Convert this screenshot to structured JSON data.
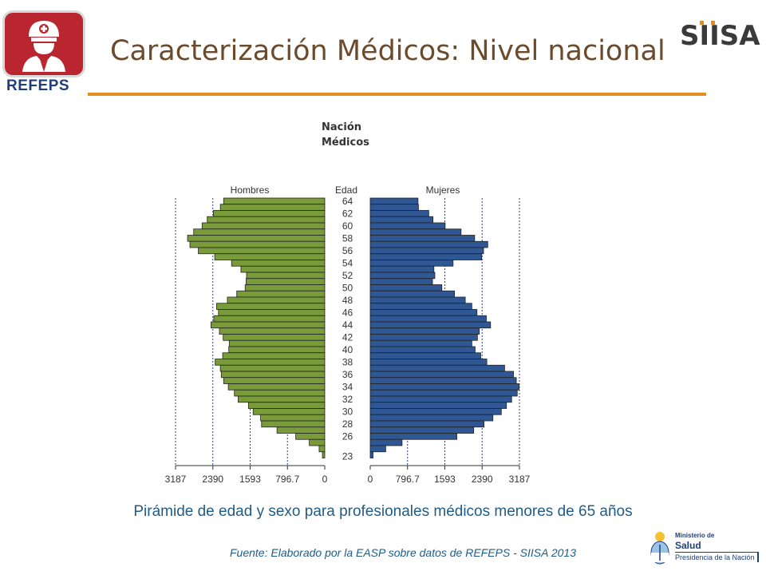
{
  "header": {
    "title": "Caracterización Médicos: Nivel nacional",
    "left_logo_text": "REFEPS",
    "right_logo_text": "SIISA",
    "accent_rule_color": "#e38f1f"
  },
  "icons": {
    "left_logo": "doctor-with-cross-cap-icon",
    "right_logo": "siisa-logo",
    "ministry_logo": "argentina-coat-of-arms-icon"
  },
  "chart_data": {
    "type": "bar",
    "orientation": "horizontal-population-pyramid",
    "title": "Nación",
    "subtitle": "Médicos",
    "left_label": "Hombres",
    "center_label": "Edad",
    "right_label": "Mujeres",
    "age_tick_labels": [
      "64",
      "62",
      "60",
      "58",
      "56",
      "54",
      "52",
      "50",
      "48",
      "46",
      "44",
      "42",
      "40",
      "38",
      "36",
      "34",
      "32",
      "30",
      "28",
      "26",
      "23"
    ],
    "ages": [
      64,
      63,
      62,
      61,
      60,
      59,
      58,
      57,
      56,
      55,
      54,
      53,
      52,
      51,
      50,
      49,
      48,
      47,
      46,
      45,
      44,
      43,
      42,
      41,
      40,
      39,
      38,
      37,
      36,
      35,
      34,
      33,
      32,
      31,
      30,
      29,
      28,
      27,
      26,
      25,
      24,
      23
    ],
    "x_ticks_left": [
      "3187",
      "2390",
      "1593",
      "796.7",
      "0"
    ],
    "x_ticks_right": [
      "0",
      "796.7",
      "1593",
      "2390",
      "3187"
    ],
    "xlim": [
      0,
      3187
    ],
    "gridlines": [
      796.7,
      1593,
      2390,
      3187
    ],
    "series": [
      {
        "name": "Hombres",
        "color": "#7a9b3a",
        "values": [
          2160,
          2230,
          2380,
          2510,
          2620,
          2800,
          2930,
          2880,
          2700,
          2350,
          1990,
          1790,
          1670,
          1680,
          1700,
          1880,
          2080,
          2310,
          2270,
          2370,
          2430,
          2250,
          2170,
          2040,
          2050,
          2180,
          2340,
          2230,
          2210,
          2160,
          2060,
          1930,
          1850,
          1630,
          1530,
          1370,
          1350,
          1020,
          620,
          330,
          120,
          50
        ]
      },
      {
        "name": "Mujeres",
        "color": "#2e5793",
        "values": [
          1020,
          1030,
          1250,
          1340,
          1600,
          1940,
          2230,
          2510,
          2420,
          2380,
          1770,
          1360,
          1380,
          1330,
          1530,
          1800,
          2030,
          2170,
          2280,
          2480,
          2570,
          2330,
          2290,
          2170,
          2240,
          2360,
          2490,
          2870,
          3060,
          3120,
          3180,
          3140,
          3020,
          2910,
          2800,
          2620,
          2430,
          2210,
          1850,
          680,
          330,
          60
        ]
      }
    ]
  },
  "caption": "Pirámide de edad y sexo para profesionales médicos menores de 65 años",
  "source": "Fuente: Elaborado por la EASP sobre datos de REFEPS - SIISA 2013",
  "ministry": {
    "line1": "Ministerio de",
    "line2": "Salud",
    "line3": "Presidencia de la Nación"
  }
}
